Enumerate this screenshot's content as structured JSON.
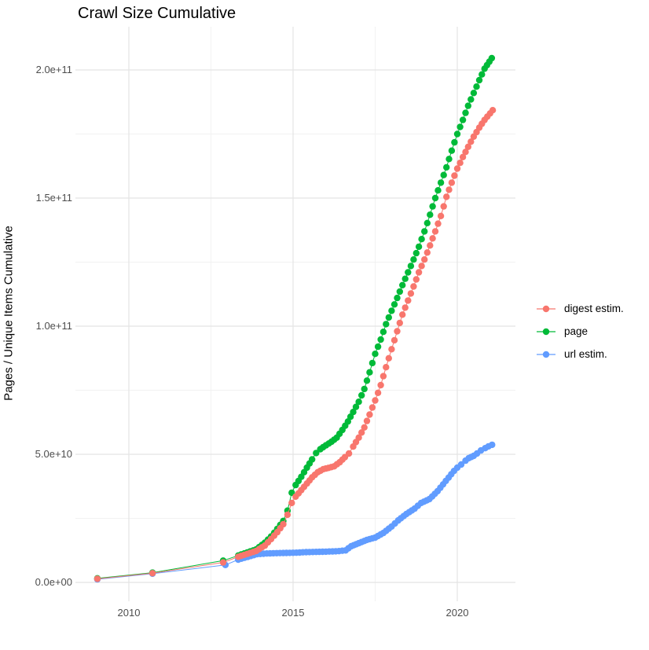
{
  "chart_data": {
    "type": "line",
    "title": "Crawl Size Cumulative",
    "xlabel": "",
    "ylabel": "Pages / Unique Items Cumulative",
    "legend_position": "right",
    "grid": true,
    "unit_note": "point values are in billions (1e9) of pages / unique items; x is decimal year",
    "point_interval_years": 0.088,
    "x_axis": {
      "ticks": [
        {
          "value": 2010,
          "label": "2010"
        },
        {
          "value": 2015,
          "label": "2015"
        },
        {
          "value": 2020,
          "label": "2020"
        }
      ],
      "minor_ticks": [
        2012.5,
        2017.5
      ],
      "range": [
        2008.4,
        2021.8
      ]
    },
    "y_axis": {
      "ticks": [
        {
          "value": 0,
          "label": "0.0e+00"
        },
        {
          "value": 50,
          "label": "5.0e+10"
        },
        {
          "value": 100,
          "label": "1.0e+11"
        },
        {
          "value": 150,
          "label": "1.5e+11"
        },
        {
          "value": 200,
          "label": "2.0e+11"
        }
      ],
      "minor_ticks": [
        25,
        75,
        125,
        175
      ],
      "range": [
        0,
        217
      ]
    },
    "series": [
      {
        "name": "digest estim.",
        "color": "#F8766D",
        "points": [
          [
            2009.04,
            1.4
          ],
          [
            2010.72,
            3.6
          ],
          [
            2012.87,
            7.8
          ],
          [
            2013.33,
            10
          ],
          [
            2013.88,
            12.3
          ],
          [
            2014.14,
            14.4
          ],
          [
            2014.33,
            16.9
          ],
          [
            2014.52,
            19.6
          ],
          [
            2014.7,
            22.7
          ],
          [
            2014.83,
            26.4
          ],
          [
            2014.96,
            31
          ],
          [
            2015.08,
            33.5
          ],
          [
            2015.25,
            36
          ],
          [
            2015.42,
            38.6
          ],
          [
            2015.58,
            41
          ],
          [
            2015.75,
            43
          ],
          [
            2015.92,
            44.2
          ],
          [
            2016.08,
            44.7
          ],
          [
            2016.25,
            45.3
          ],
          [
            2016.42,
            46.9
          ],
          [
            2016.58,
            48.9
          ],
          [
            2016.7,
            50.3
          ],
          [
            2016.83,
            53
          ],
          [
            2017.0,
            56.5
          ],
          [
            2017.17,
            60.5
          ],
          [
            2017.33,
            65.5
          ],
          [
            2017.5,
            71
          ],
          [
            2017.67,
            77
          ],
          [
            2017.83,
            84
          ],
          [
            2018.0,
            91
          ],
          [
            2018.17,
            98
          ],
          [
            2018.33,
            104.5
          ],
          [
            2018.5,
            110
          ],
          [
            2018.67,
            115.5
          ],
          [
            2018.83,
            121
          ],
          [
            2019.0,
            126
          ],
          [
            2019.17,
            131.5
          ],
          [
            2019.33,
            137
          ],
          [
            2019.5,
            143
          ],
          [
            2019.67,
            150.5
          ],
          [
            2019.83,
            156
          ],
          [
            2020.0,
            161.5
          ],
          [
            2020.17,
            166
          ],
          [
            2020.33,
            170
          ],
          [
            2020.5,
            174
          ],
          [
            2020.67,
            177.5
          ],
          [
            2020.83,
            180.5
          ],
          [
            2021.08,
            184.3
          ]
        ]
      },
      {
        "name": "page",
        "color": "#00BA38",
        "points": [
          [
            2009.04,
            1.6
          ],
          [
            2010.72,
            3.8
          ],
          [
            2012.87,
            8.5
          ],
          [
            2013.33,
            10.5
          ],
          [
            2013.88,
            12.9
          ],
          [
            2014.14,
            15.5
          ],
          [
            2014.33,
            17.9
          ],
          [
            2014.52,
            20.9
          ],
          [
            2014.7,
            24
          ],
          [
            2014.83,
            28
          ],
          [
            2014.96,
            35
          ],
          [
            2015.08,
            38
          ],
          [
            2015.25,
            41.2
          ],
          [
            2015.42,
            44.8
          ],
          [
            2015.58,
            48
          ],
          [
            2015.7,
            50.5
          ],
          [
            2015.83,
            52
          ],
          [
            2016.0,
            53.5
          ],
          [
            2016.17,
            54.9
          ],
          [
            2016.33,
            56.5
          ],
          [
            2016.5,
            59.5
          ],
          [
            2016.67,
            62.8
          ],
          [
            2016.83,
            66.5
          ],
          [
            2017.0,
            70.5
          ],
          [
            2017.17,
            75.5
          ],
          [
            2017.33,
            82
          ],
          [
            2017.5,
            89.2
          ],
          [
            2017.67,
            94.8
          ],
          [
            2017.83,
            100.8
          ],
          [
            2018.0,
            106
          ],
          [
            2018.17,
            111
          ],
          [
            2018.33,
            116
          ],
          [
            2018.5,
            121
          ],
          [
            2018.67,
            126
          ],
          [
            2018.83,
            131
          ],
          [
            2019.0,
            137
          ],
          [
            2019.17,
            143.5
          ],
          [
            2019.33,
            150
          ],
          [
            2019.5,
            156
          ],
          [
            2019.67,
            162
          ],
          [
            2019.83,
            168.5
          ],
          [
            2020.0,
            175
          ],
          [
            2020.17,
            180.5
          ],
          [
            2020.33,
            186
          ],
          [
            2020.5,
            191
          ],
          [
            2020.67,
            196
          ],
          [
            2020.83,
            200.5
          ],
          [
            2021.05,
            204.6
          ]
        ]
      },
      {
        "name": "url estim.",
        "color": "#619CFF",
        "points": [
          [
            2009.04,
            1.2
          ],
          [
            2010.72,
            3.4
          ],
          [
            2012.94,
            6.8
          ],
          [
            2013.33,
            8.9
          ],
          [
            2013.9,
            11
          ],
          [
            2014.2,
            11.3
          ],
          [
            2014.5,
            11.4
          ],
          [
            2014.8,
            11.5
          ],
          [
            2015.1,
            11.6
          ],
          [
            2015.4,
            11.8
          ],
          [
            2015.7,
            11.9
          ],
          [
            2016.0,
            12
          ],
          [
            2016.2,
            12.1
          ],
          [
            2016.4,
            12.2
          ],
          [
            2016.6,
            12.5
          ],
          [
            2016.77,
            14.1
          ],
          [
            2017.0,
            15.3
          ],
          [
            2017.25,
            16.6
          ],
          [
            2017.5,
            17.5
          ],
          [
            2017.75,
            19.3
          ],
          [
            2018.0,
            21.8
          ],
          [
            2018.2,
            24.2
          ],
          [
            2018.45,
            26.7
          ],
          [
            2018.7,
            28.8
          ],
          [
            2018.9,
            31
          ],
          [
            2019.15,
            32.5
          ],
          [
            2019.4,
            35.6
          ],
          [
            2019.65,
            39.6
          ],
          [
            2019.9,
            43.5
          ],
          [
            2020.0,
            44.8
          ],
          [
            2020.12,
            46
          ],
          [
            2020.25,
            47.5
          ],
          [
            2020.35,
            48.5
          ],
          [
            2020.5,
            49.4
          ],
          [
            2020.6,
            50.3
          ],
          [
            2020.72,
            51.5
          ],
          [
            2020.85,
            52.4
          ],
          [
            2020.95,
            53.1
          ],
          [
            2021.06,
            53.7
          ]
        ]
      }
    ],
    "colors": {
      "grid_major": "#e4e4e4",
      "grid_minor": "#f1f1f1",
      "tick_text": "#4d4d4d",
      "title_text": "#000000"
    }
  }
}
